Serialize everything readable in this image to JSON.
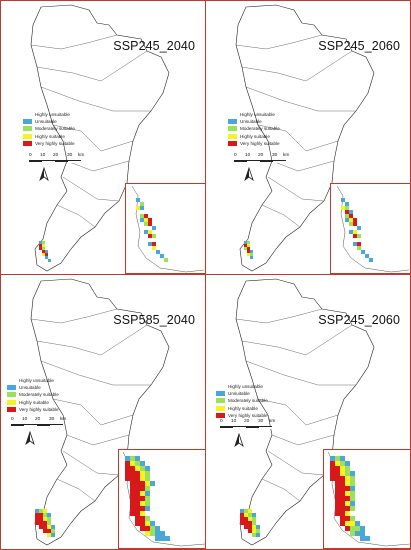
{
  "colors": {
    "frame": "#c0392b",
    "highly_unsuitable": "#ffffff",
    "unsuitable": "#4aa7d8",
    "moderately_suitable": "#9be15a",
    "highly_suitable": "#f7f224",
    "very_highly_suitable": "#d7191c"
  },
  "panels": [
    {
      "title": "SSP245_2040",
      "legend": [
        "Highly unsuitable",
        "Unsuitable",
        "Moderately suitable",
        "Highly suitable",
        "Very highly suitable"
      ],
      "scale": {
        "labels": [
          "0",
          "10",
          "20",
          "30",
          "km"
        ]
      }
    },
    {
      "title": "SSP245_2060",
      "legend": [
        "Highly unsuitable",
        "Unsuitable",
        "Moderately suitable",
        "Highly suitable",
        "Very highly suitable"
      ],
      "scale": {
        "labels": [
          "0",
          "10",
          "20",
          "30",
          "km"
        ]
      }
    },
    {
      "title": "SSP585_2040",
      "legend": [
        "Highly unsuitable",
        "Unsuitable",
        "Moderately suitable",
        "Highly suitable",
        "Very highly suitable"
      ],
      "scale": {
        "labels": [
          "0",
          "10",
          "20",
          "30",
          "km"
        ]
      }
    },
    {
      "title": "SSP245_2060",
      "legend": [
        "Highly unsuitable",
        "Unsuitable",
        "Moderately suitable",
        "Highly suitable",
        "Very highly suitable"
      ],
      "scale": {
        "labels": [
          "0",
          "10",
          "20",
          "30",
          "km"
        ]
      }
    }
  ]
}
